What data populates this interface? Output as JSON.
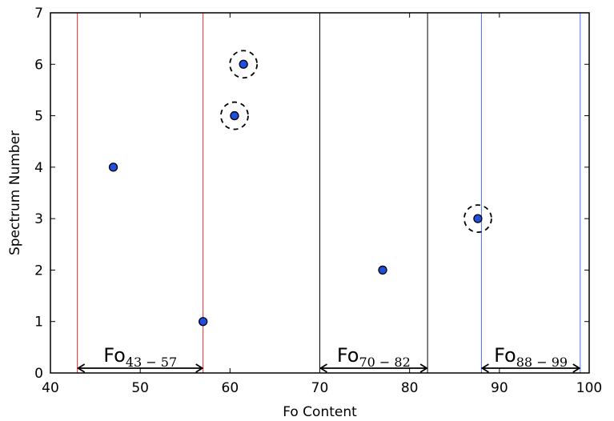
{
  "chart_data": {
    "type": "scatter",
    "xlabel": "Fo Content",
    "ylabel": "Spectrum Number",
    "xlim": [
      40,
      100
    ],
    "ylim": [
      0,
      7
    ],
    "xticks": [
      40,
      50,
      60,
      70,
      80,
      90,
      100
    ],
    "yticks": [
      0,
      1,
      2,
      3,
      4,
      5,
      6,
      7
    ],
    "grid": false,
    "marker_color": "#1f4fe0",
    "points": [
      {
        "x": 57,
        "y": 1,
        "circled": false
      },
      {
        "x": 77,
        "y": 2,
        "circled": false
      },
      {
        "x": 87.6,
        "y": 3,
        "circled": true
      },
      {
        "x": 47,
        "y": 4,
        "circled": false
      },
      {
        "x": 60.5,
        "y": 5,
        "circled": true
      },
      {
        "x": 61.5,
        "y": 6,
        "circled": true
      }
    ],
    "ranges": [
      {
        "label": "Fo",
        "subscript": "43 − 57",
        "start": 43,
        "end": 57,
        "color": "#e3262b"
      },
      {
        "label": "Fo",
        "subscript": "70 − 82",
        "start": 70,
        "end": 82,
        "color": "#000000"
      },
      {
        "label": "Fo",
        "subscript": "88 − 99",
        "start": 88,
        "end": 99,
        "color": "#4a6fe0"
      }
    ]
  }
}
